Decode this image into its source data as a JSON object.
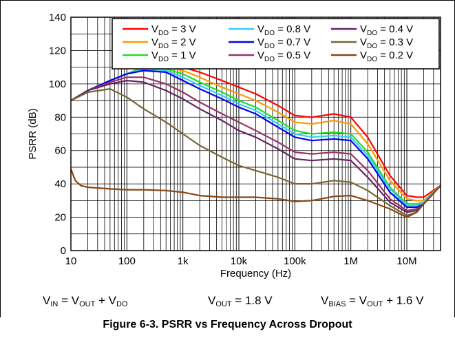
{
  "chart_data": {
    "type": "line",
    "title": "",
    "xlabel": "Frequency (Hz)",
    "ylabel": "PSRR (dB)",
    "x_scale": "log",
    "xlim": [
      10,
      40000000
    ],
    "ylim": [
      0,
      140
    ],
    "grid": true,
    "legend_position": "top-right",
    "x_ticks": [
      {
        "value": 10,
        "label": "10"
      },
      {
        "value": 100,
        "label": "100"
      },
      {
        "value": 1000,
        "label": "1k"
      },
      {
        "value": 10000,
        "label": "10k"
      },
      {
        "value": 100000,
        "label": "100k"
      },
      {
        "value": 1000000,
        "label": "1M"
      },
      {
        "value": 10000000,
        "label": "10M"
      }
    ],
    "y_ticks": [
      0,
      20,
      40,
      60,
      80,
      100,
      120,
      140
    ],
    "series": [
      {
        "name": "VDO = 3 V",
        "legend_main": "V",
        "legend_sub": "DO",
        "legend_rest": " = 3 V",
        "color": "#ff0000",
        "x": [
          10,
          20,
          50,
          100,
          200,
          500,
          1000,
          2000,
          5000,
          10000,
          20000,
          50000,
          100000,
          200000,
          500000,
          1000000,
          2000000,
          5000000,
          10000000,
          15000000,
          20000000,
          40000000
        ],
        "y": [
          90,
          96,
          102,
          106,
          110,
          111,
          110,
          107,
          102,
          98,
          94,
          87,
          81,
          80,
          82,
          80,
          68,
          45,
          33,
          32,
          32,
          39
        ]
      },
      {
        "name": "VDO = 2 V",
        "legend_main": "V",
        "legend_sub": "DO",
        "legend_rest": " = 2 V",
        "color": "#ff9900",
        "x": [
          10,
          20,
          50,
          100,
          200,
          500,
          1000,
          2000,
          5000,
          10000,
          20000,
          50000,
          100000,
          200000,
          500000,
          1000000,
          2000000,
          5000000,
          10000000,
          15000000,
          20000000,
          40000000
        ],
        "y": [
          90,
          96,
          102,
          106,
          110,
          110,
          108,
          104,
          98,
          94,
          90,
          83,
          77,
          76,
          78,
          76,
          64,
          42,
          31,
          30,
          30,
          39
        ]
      },
      {
        "name": "VDO = 1 V",
        "legend_main": "V",
        "legend_sub": "DO",
        "legend_rest": " = 1 V",
        "color": "#22dd22",
        "x": [
          10,
          20,
          50,
          100,
          200,
          500,
          1000,
          2000,
          5000,
          10000,
          20000,
          50000,
          100000,
          200000,
          500000,
          1000000,
          2000000,
          5000000,
          10000000,
          15000000,
          20000000,
          40000000
        ],
        "y": [
          90,
          96,
          102,
          106,
          110,
          109,
          106,
          101,
          95,
          90,
          86,
          78,
          72,
          70,
          71,
          70,
          59,
          38,
          28,
          28,
          29,
          39
        ]
      },
      {
        "name": "VDO = 0.8 V",
        "legend_main": "V",
        "legend_sub": "DO",
        "legend_rest": " = 0.8 V",
        "color": "#33ccff",
        "x": [
          10,
          20,
          50,
          100,
          200,
          500,
          1000,
          2000,
          5000,
          10000,
          20000,
          50000,
          100000,
          200000,
          500000,
          1000000,
          2000000,
          5000000,
          10000000,
          15000000,
          20000000,
          40000000
        ],
        "y": [
          90,
          96,
          102,
          106,
          109,
          108,
          104,
          99,
          93,
          88,
          84,
          76,
          70,
          68,
          69,
          68,
          57,
          37,
          27,
          27,
          29,
          39
        ]
      },
      {
        "name": "VDO = 0.7 V",
        "legend_main": "V",
        "legend_sub": "DO",
        "legend_rest": " = 0.7 V",
        "color": "#0000ee",
        "x": [
          10,
          20,
          50,
          100,
          200,
          500,
          1000,
          2000,
          5000,
          10000,
          20000,
          50000,
          100000,
          200000,
          500000,
          1000000,
          2000000,
          5000000,
          10000000,
          15000000,
          20000000,
          40000000
        ],
        "y": [
          90,
          96,
          102,
          106,
          108,
          107,
          102,
          97,
          91,
          86,
          82,
          74,
          68,
          66,
          67,
          66,
          55,
          35,
          26,
          26,
          28,
          39
        ]
      },
      {
        "name": "VDO = 0.5 V",
        "legend_main": "V",
        "legend_sub": "DO",
        "legend_rest": " = 0.5 V",
        "color": "#993366",
        "x": [
          10,
          20,
          50,
          100,
          200,
          500,
          1000,
          2000,
          5000,
          10000,
          20000,
          50000,
          100000,
          200000,
          500000,
          1000000,
          2000000,
          5000000,
          10000000,
          15000000,
          20000000,
          40000000
        ],
        "y": [
          90,
          96,
          101,
          104,
          104,
          100,
          95,
          89,
          82,
          77,
          72,
          65,
          59,
          58,
          59,
          58,
          48,
          31,
          24,
          25,
          28,
          39
        ]
      },
      {
        "name": "VDO = 0.4 V",
        "legend_main": "V",
        "legend_sub": "DO",
        "legend_rest": " = 0.4 V",
        "color": "#662266",
        "x": [
          10,
          20,
          50,
          100,
          200,
          500,
          1000,
          2000,
          5000,
          10000,
          20000,
          50000,
          100000,
          200000,
          500000,
          1000000,
          2000000,
          5000000,
          10000000,
          15000000,
          20000000,
          40000000
        ],
        "y": [
          90,
          96,
          100,
          102,
          101,
          96,
          91,
          85,
          78,
          72,
          68,
          61,
          55,
          54,
          55,
          54,
          44,
          29,
          23,
          24,
          28,
          39
        ]
      },
      {
        "name": "VDO = 0.3 V",
        "legend_main": "V",
        "legend_sub": "DO",
        "legend_rest": " = 0.3 V",
        "color": "#776633",
        "x": [
          10,
          20,
          50,
          100,
          200,
          500,
          1000,
          2000,
          5000,
          10000,
          20000,
          50000,
          100000,
          200000,
          500000,
          1000000,
          2000000,
          5000000,
          10000000,
          15000000,
          20000000,
          40000000
        ],
        "y": [
          90,
          95,
          97,
          92,
          85,
          77,
          70,
          63,
          56,
          51,
          48,
          44,
          40,
          40,
          42,
          41,
          36,
          27,
          21,
          23,
          28,
          39
        ]
      },
      {
        "name": "VDO = 0.2 V",
        "legend_main": "V",
        "legend_sub": "DO",
        "legend_rest": " = 0.2 V",
        "color": "#8b4513",
        "x": [
          10,
          12,
          15,
          20,
          50,
          100,
          200,
          500,
          1000,
          2000,
          5000,
          10000,
          20000,
          50000,
          100000,
          200000,
          500000,
          1000000,
          2000000,
          5000000,
          10000000,
          15000000,
          20000000,
          40000000
        ],
        "y": [
          49,
          42,
          39,
          38,
          37,
          36.5,
          36.5,
          36,
          35,
          33,
          32,
          32,
          32,
          31,
          29.5,
          30,
          32.5,
          33,
          30,
          25,
          20,
          23,
          28,
          39
        ]
      }
    ]
  },
  "conditions": [
    {
      "main": "V",
      "sub": "IN",
      "mid": " = V",
      "sub2": "OUT",
      "mid2": " + V",
      "sub3": "DO",
      "tail": ""
    },
    {
      "main": "V",
      "sub": "OUT",
      "tail": " = 1.8 V"
    },
    {
      "main": "V",
      "sub": "BIAS",
      "mid": " = V",
      "sub2": "OUT",
      "tail": " + 1.6 V"
    }
  ],
  "caption": "Figure 6-3. PSRR vs Frequency Across Dropout"
}
